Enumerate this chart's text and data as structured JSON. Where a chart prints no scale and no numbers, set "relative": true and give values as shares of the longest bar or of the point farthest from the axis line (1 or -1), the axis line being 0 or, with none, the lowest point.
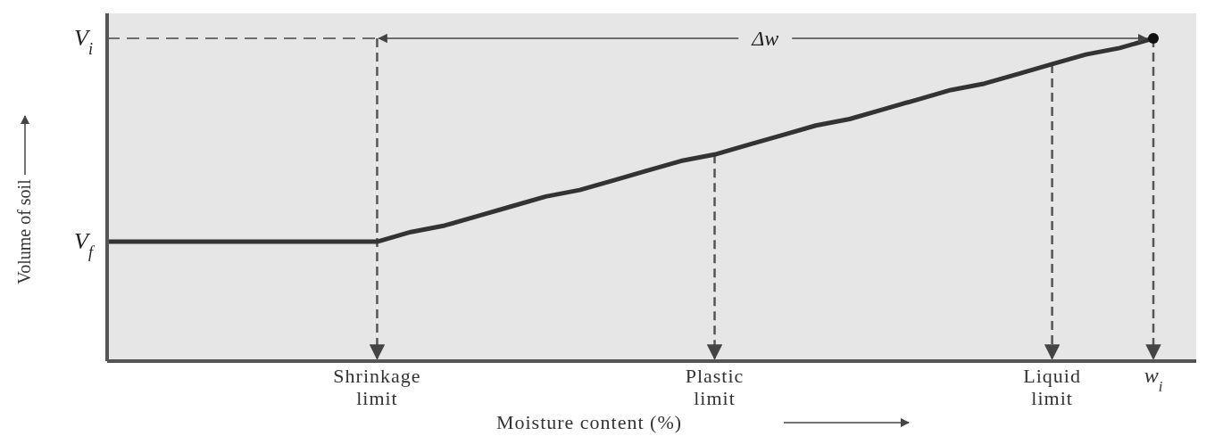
{
  "chart_data": {
    "type": "line",
    "relative": true,
    "xlabel": "Moisture content (%)",
    "ylabel": "Volume of soil",
    "categories": [
      null,
      null,
      null,
      null,
      null,
      null,
      null,
      null,
      "Shrinkage limit",
      null,
      null,
      null,
      null,
      null,
      null,
      null,
      null,
      null,
      "Plastic limit",
      null,
      null,
      null,
      null,
      null,
      null,
      null,
      null,
      null,
      "Liquid limit",
      null,
      null,
      "w$_{i}$"
    ],
    "series": [
      {
        "color": "#333333",
        "values": [
          0.37,
          0.37,
          0.37,
          0.37,
          0.37,
          0.37,
          0.37,
          0.37,
          0.37,
          0.4,
          0.42,
          0.45,
          0.48,
          0.51,
          0.53,
          0.56,
          0.59,
          0.62,
          0.64,
          0.67,
          0.7,
          0.73,
          0.75,
          0.78,
          0.81,
          0.84,
          0.86,
          0.89,
          0.92,
          0.95,
          0.97,
          1
        ],
        "marker": "none"
      },
      {
        "type": "scatter",
        "color": "#111111",
        "values": [
          null,
          null,
          null,
          null,
          null,
          null,
          null,
          null,
          null,
          null,
          null,
          null,
          null,
          null,
          null,
          null,
          null,
          null,
          null,
          null,
          null,
          null,
          null,
          null,
          null,
          null,
          null,
          null,
          null,
          null,
          null,
          1
        ],
        "marker": "circle"
      }
    ],
    "ref_lines": [
      {
        "axis": "x",
        "value": "Shrinkage limit",
        "line_style": "dashed",
        "color": "#555555"
      },
      {
        "axis": "x",
        "value": "Plastic limit",
        "line_style": "dashed",
        "color": "#555555"
      },
      {
        "axis": "x",
        "value": "Liquid limit",
        "line_style": "dashed",
        "color": "#555555"
      },
      {
        "axis": "x",
        "value": "w$_{i}$",
        "line_style": "dashed",
        "color": "#555555"
      }
    ],
    "annotations": [
      "V$_{i}$",
      "V$_{f}$",
      "Δw"
    ],
    "grid": false
  }
}
